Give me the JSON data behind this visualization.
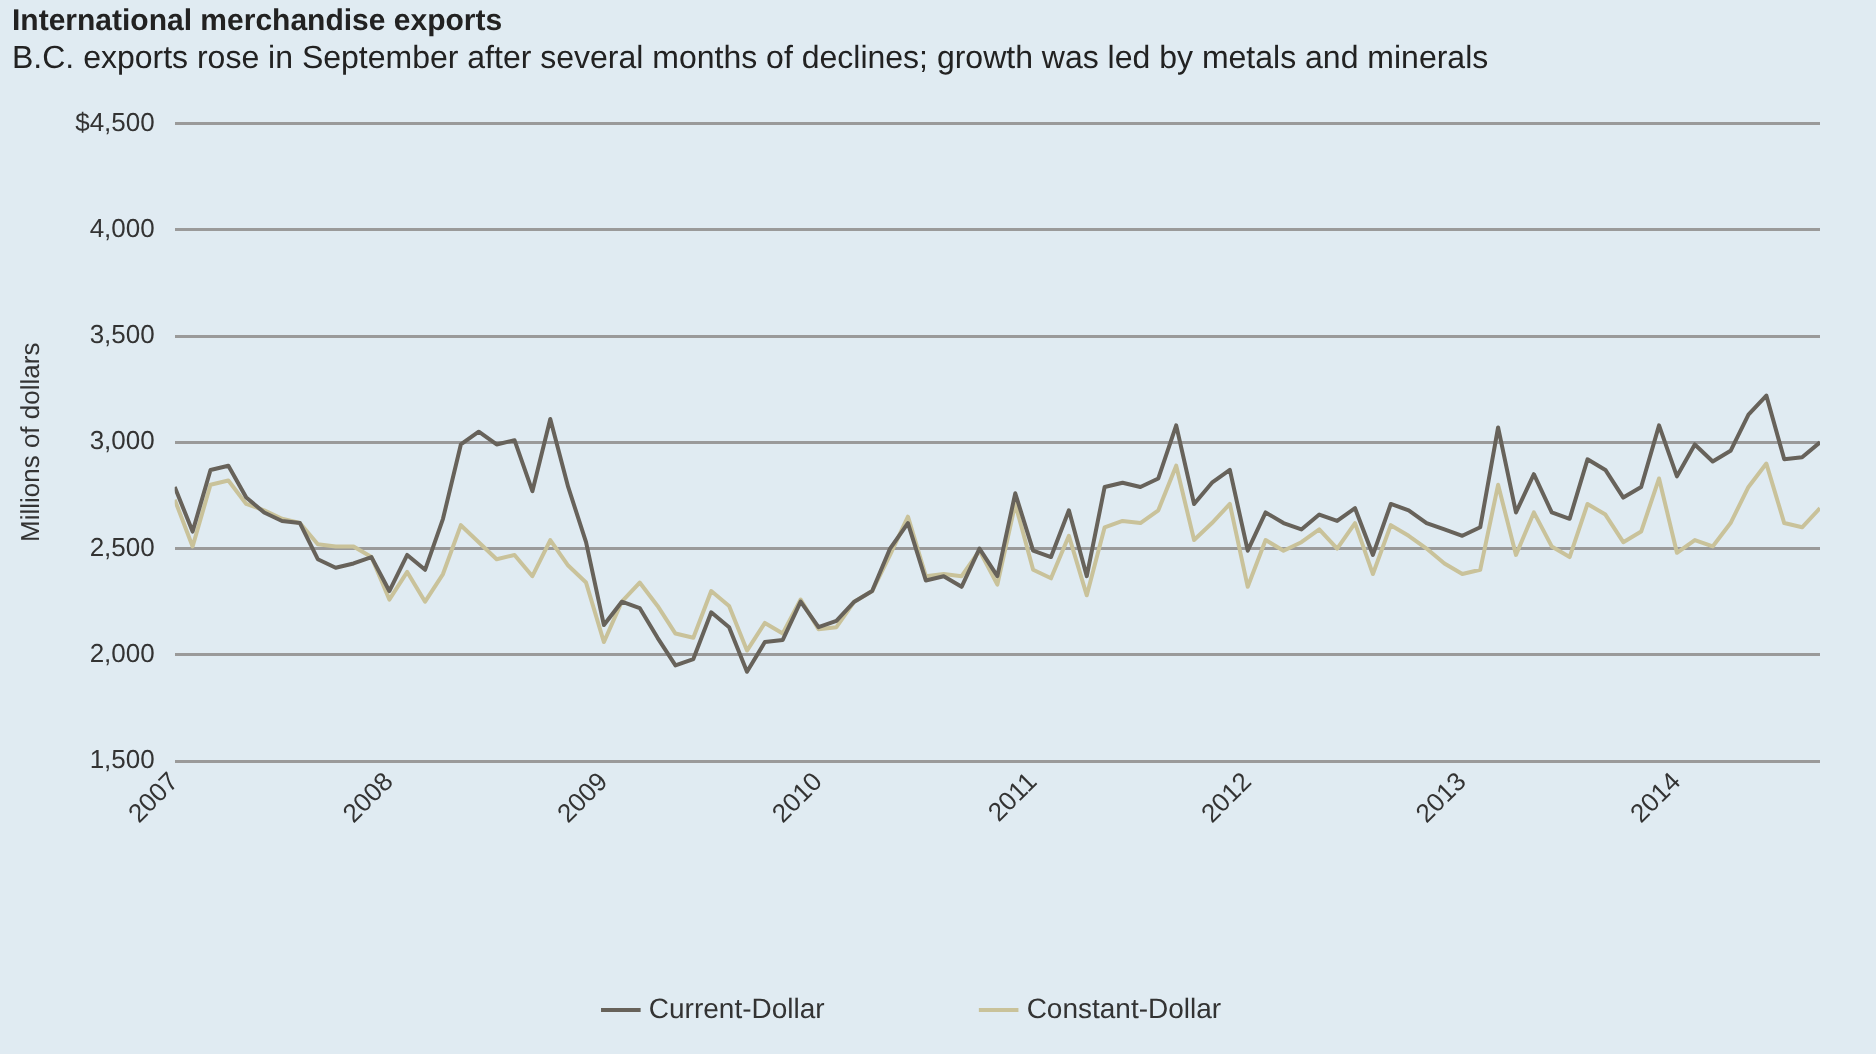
{
  "chart_data": {
    "type": "line",
    "title": "International merchandise exports",
    "subtitle": "B.C. exports rose in September after several months of declines; growth was led by metals and minerals",
    "ylabel": "Millions of dollars",
    "x": [
      "2007-01",
      "2007-02",
      "2007-03",
      "2007-04",
      "2007-05",
      "2007-06",
      "2007-07",
      "2007-08",
      "2007-09",
      "2007-10",
      "2007-11",
      "2007-12",
      "2008-01",
      "2008-02",
      "2008-03",
      "2008-04",
      "2008-05",
      "2008-06",
      "2008-07",
      "2008-08",
      "2008-09",
      "2008-10",
      "2008-11",
      "2008-12",
      "2009-01",
      "2009-02",
      "2009-03",
      "2009-04",
      "2009-05",
      "2009-06",
      "2009-07",
      "2009-08",
      "2009-09",
      "2009-10",
      "2009-11",
      "2009-12",
      "2010-01",
      "2010-02",
      "2010-03",
      "2010-04",
      "2010-05",
      "2010-06",
      "2010-07",
      "2010-08",
      "2010-09",
      "2010-10",
      "2010-11",
      "2010-12",
      "2011-01",
      "2011-02",
      "2011-03",
      "2011-04",
      "2011-05",
      "2011-06",
      "2011-07",
      "2011-08",
      "2011-09",
      "2011-10",
      "2011-11",
      "2011-12",
      "2012-01",
      "2012-02",
      "2012-03",
      "2012-04",
      "2012-05",
      "2012-06",
      "2012-07",
      "2012-08",
      "2012-09",
      "2012-10",
      "2012-11",
      "2012-12",
      "2013-01",
      "2013-02",
      "2013-03",
      "2013-04",
      "2013-05",
      "2013-06",
      "2013-07",
      "2013-08",
      "2013-09",
      "2013-10",
      "2013-11",
      "2013-12",
      "2014-01",
      "2014-02",
      "2014-03",
      "2014-04",
      "2014-05",
      "2014-06",
      "2014-07",
      "2014-08",
      "2014-09"
    ],
    "series": [
      {
        "name": "Current-Dollar",
        "color": "#67625a",
        "values": [
          2790,
          2580,
          2870,
          2890,
          2740,
          2670,
          2630,
          2620,
          2450,
          2410,
          2430,
          2460,
          2300,
          2470,
          2400,
          2640,
          2990,
          3050,
          2990,
          3010,
          2770,
          3110,
          2790,
          2530,
          2140,
          2250,
          2220,
          2080,
          1950,
          1980,
          2200,
          2130,
          1920,
          2060,
          2070,
          2250,
          2130,
          2160,
          2250,
          2300,
          2500,
          2620,
          2350,
          2370,
          2320,
          2500,
          2370,
          2760,
          2490,
          2460,
          2680,
          2370,
          2790,
          2810,
          2790,
          2830,
          3080,
          2710,
          2810,
          2870,
          2490,
          2670,
          2620,
          2590,
          2660,
          2630,
          2690,
          2470,
          2710,
          2680,
          2620,
          2590,
          2560,
          2600,
          3070,
          2670,
          2850,
          2670,
          2640,
          2920,
          2870,
          2740,
          2790,
          3080,
          2840,
          2990,
          2910,
          2960,
          3130,
          3220,
          2920,
          2930,
          3000
        ]
      },
      {
        "name": "Constant-Dollar",
        "color": "#c9c29a",
        "values": [
          2730,
          2510,
          2800,
          2820,
          2710,
          2680,
          2640,
          2620,
          2520,
          2510,
          2510,
          2460,
          2260,
          2390,
          2250,
          2380,
          2610,
          2530,
          2450,
          2470,
          2370,
          2540,
          2420,
          2340,
          2060,
          2250,
          2340,
          2230,
          2100,
          2080,
          2300,
          2230,
          2020,
          2150,
          2100,
          2260,
          2120,
          2130,
          2250,
          2300,
          2470,
          2650,
          2370,
          2380,
          2370,
          2490,
          2330,
          2710,
          2400,
          2360,
          2560,
          2280,
          2600,
          2630,
          2620,
          2680,
          2890,
          2540,
          2620,
          2710,
          2320,
          2540,
          2490,
          2530,
          2590,
          2500,
          2620,
          2380,
          2610,
          2560,
          2500,
          2430,
          2380,
          2400,
          2800,
          2470,
          2670,
          2510,
          2460,
          2710,
          2660,
          2530,
          2580,
          2830,
          2480,
          2540,
          2510,
          2620,
          2790,
          2900,
          2620,
          2600,
          2690
        ]
      }
    ],
    "xlim": [
      "2007-01",
      "2014-09"
    ],
    "xticks": [
      "2007",
      "2008",
      "2009",
      "2010",
      "2011",
      "2012",
      "2013",
      "2014"
    ],
    "ylim": [
      1500,
      4500
    ],
    "yticks": [
      {
        "value": 1500,
        "label": "1,500"
      },
      {
        "value": 2000,
        "label": "2,000"
      },
      {
        "value": 2500,
        "label": "2,500"
      },
      {
        "value": 3000,
        "label": "3,000"
      },
      {
        "value": 3500,
        "label": "3,500"
      },
      {
        "value": 4000,
        "label": "4,000"
      },
      {
        "value": 4500,
        "label": "$4,500"
      }
    ],
    "grid": "y",
    "legend": "bottom",
    "marker": "none",
    "line_style": "solid"
  }
}
